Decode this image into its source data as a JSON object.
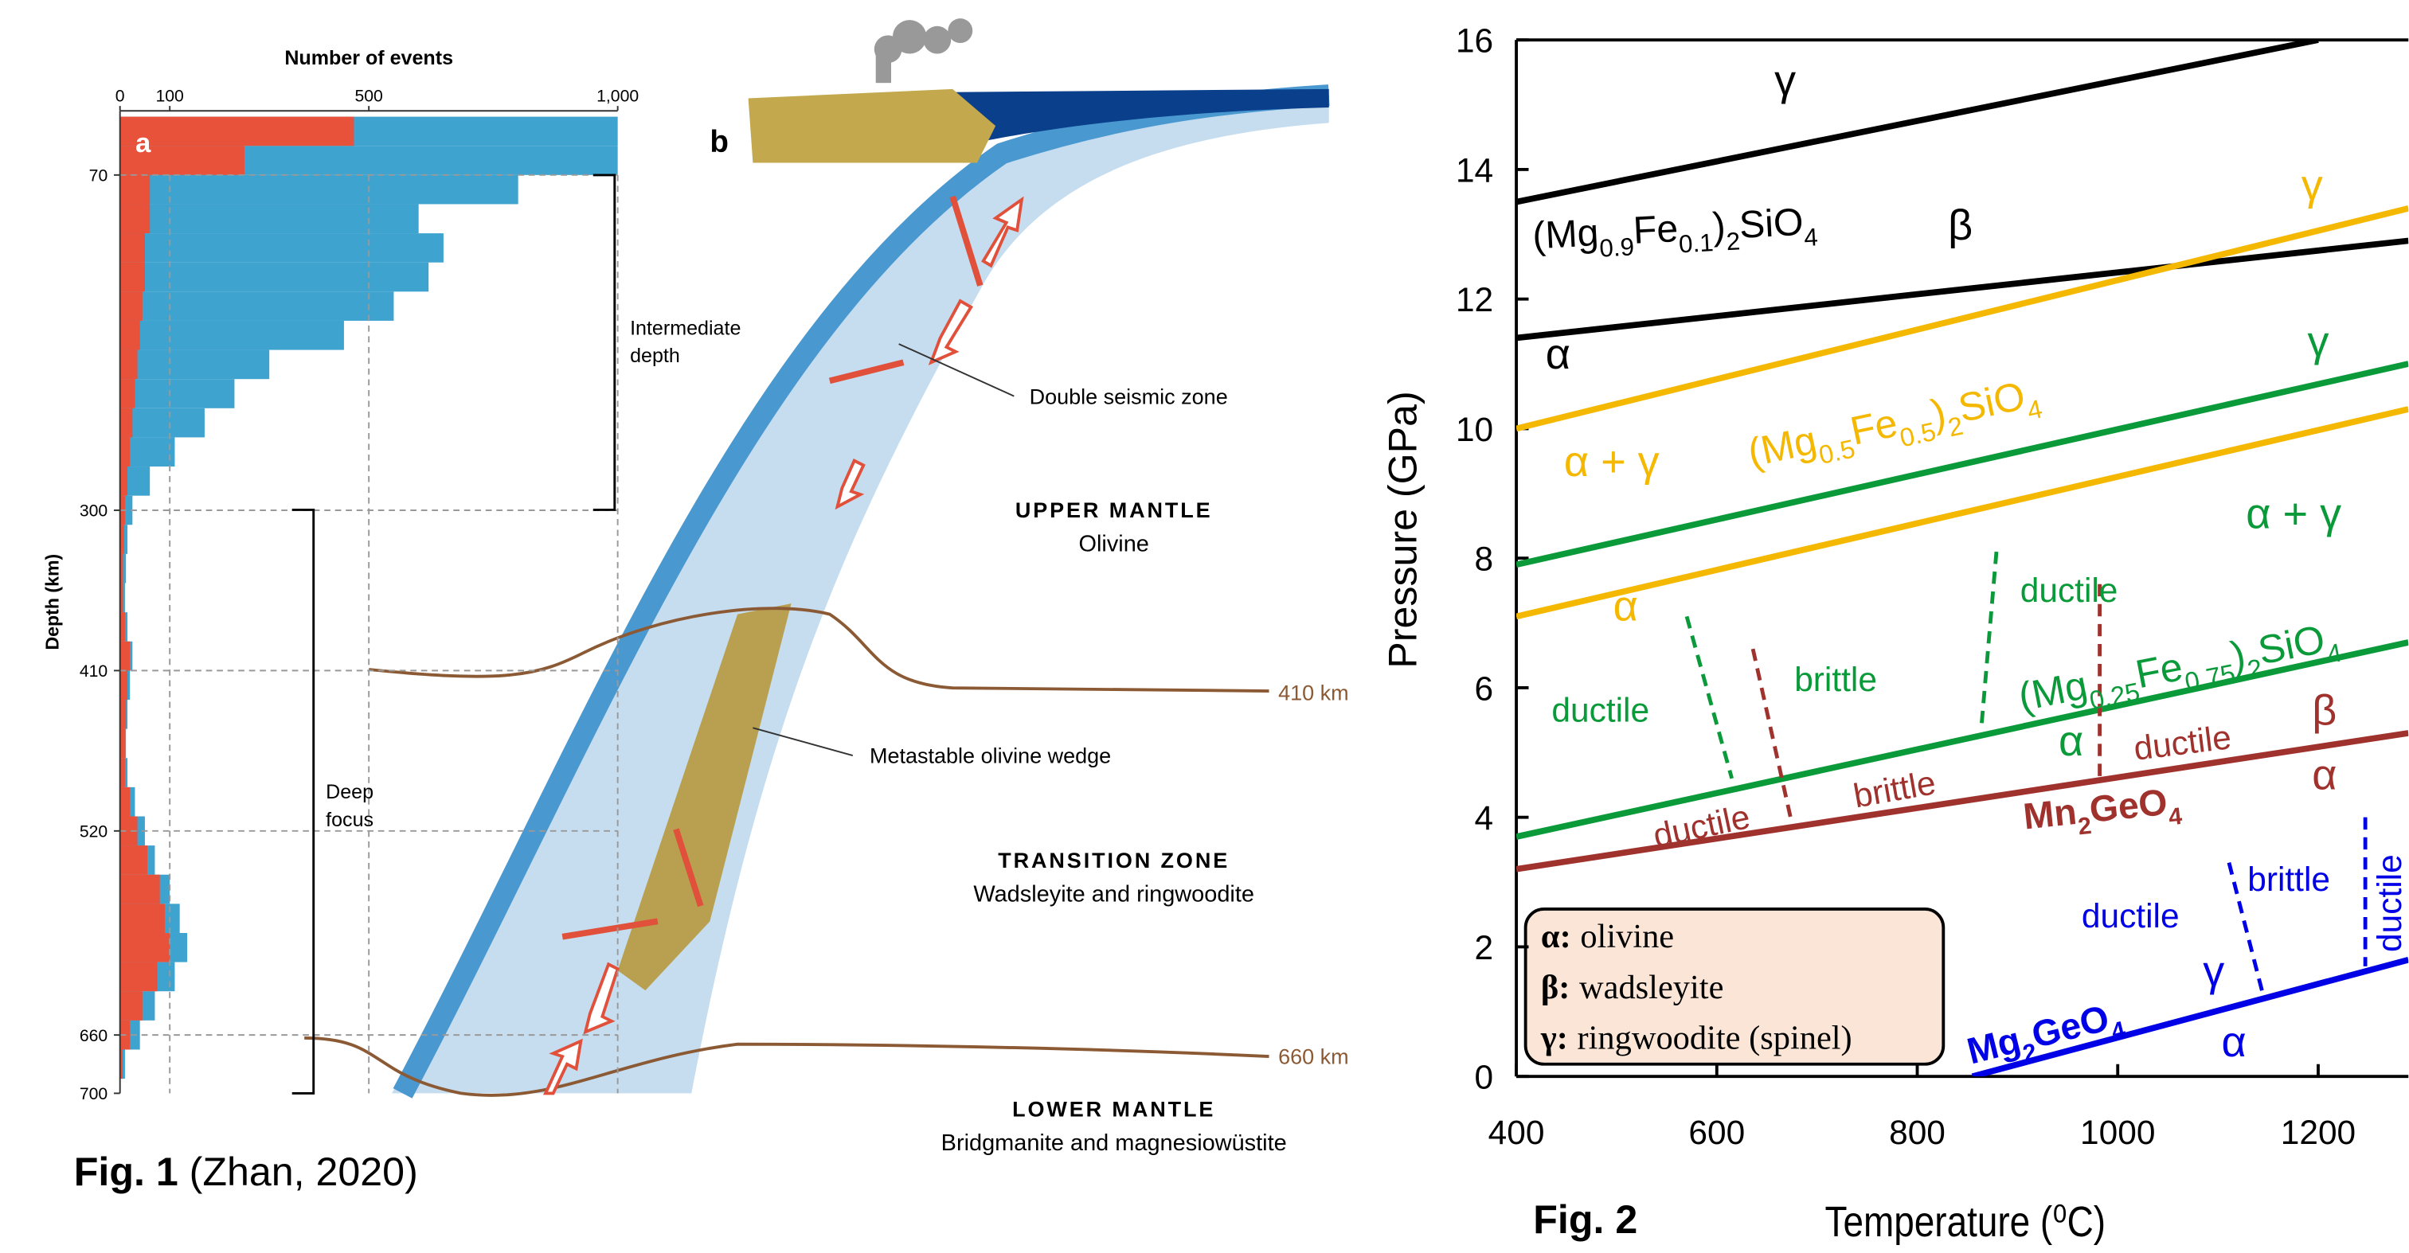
{
  "chart_data": [
    {
      "type": "histogram",
      "orientation": "horizontal",
      "panel": "a",
      "x_label": "Number of events",
      "y_label": "Depth (km)",
      "xlim": [
        0,
        1000
      ],
      "xticks": [
        0,
        100,
        500,
        {
          "value": 1000,
          "label": "1,000"
        }
      ],
      "ylim": [
        26,
        700
      ],
      "yticks": [
        70,
        300,
        410,
        520,
        660,
        700
      ],
      "grid": true,
      "bins": [
        30,
        50,
        70,
        90,
        110,
        130,
        150,
        170,
        190,
        210,
        230,
        250,
        270,
        290,
        310,
        330,
        350,
        370,
        390,
        410,
        430,
        450,
        470,
        490,
        510,
        530,
        550,
        570,
        590,
        610,
        630,
        650,
        670,
        690
      ],
      "series": [
        {
          "color": "#3fa3cf",
          "values": [
            1000,
            1000,
            800,
            600,
            650,
            620,
            550,
            450,
            300,
            230,
            170,
            110,
            60,
            25,
            15,
            12,
            10,
            15,
            25,
            20,
            15,
            12,
            15,
            30,
            50,
            70,
            100,
            120,
            135,
            110,
            70,
            40,
            10
          ]
        },
        {
          "color": "#e8513a",
          "values": [
            470,
            250,
            60,
            60,
            50,
            50,
            45,
            40,
            35,
            30,
            25,
            20,
            15,
            10,
            8,
            6,
            6,
            10,
            20,
            15,
            12,
            10,
            10,
            20,
            35,
            55,
            80,
            90,
            100,
            75,
            45,
            20,
            5
          ]
        }
      ],
      "annotations": [
        [
          "Intermediate",
          "depth"
        ],
        [
          "Deep",
          "focus"
        ]
      ]
    },
    {
      "type": "line",
      "x_label": "Temperature (⁰C)",
      "y_label": "Pressure (GPa)",
      "xlim": [
        400,
        1290
      ],
      "xticks": [
        400,
        600,
        800,
        1000,
        1200
      ],
      "ylim": [
        0,
        16
      ],
      "yticks": [
        0,
        2,
        4,
        6,
        8,
        10,
        12,
        14,
        16
      ],
      "series": [
        {
          "color": "#000000",
          "x": [
            400,
            1200
          ],
          "values": [
            13.5,
            16
          ]
        },
        {
          "color": "#000000",
          "x": [
            400,
            1290
          ],
          "values": [
            11.4,
            12.9
          ]
        },
        {
          "color": "#f5b800",
          "x": [
            400,
            1290
          ],
          "values": [
            10.0,
            13.4
          ]
        },
        {
          "color": "#f5b800",
          "x": [
            400,
            1290
          ],
          "values": [
            7.1,
            10.3
          ]
        },
        {
          "color": "#0a9a3a",
          "x": [
            400,
            1290
          ],
          "values": [
            7.9,
            11.0
          ]
        },
        {
          "color": "#0a9a3a",
          "x": [
            400,
            1290
          ],
          "values": [
            3.7,
            6.7
          ]
        },
        {
          "color": "#a0322e",
          "x": [
            400,
            1290
          ],
          "values": [
            3.2,
            5.3
          ]
        },
        {
          "color": "#0000e6",
          "x": [
            855,
            1290
          ],
          "values": [
            0,
            1.8
          ]
        },
        {
          "color": "#0a9a3a",
          "dashed": true,
          "x": [
            570,
            615
          ],
          "values": [
            7.1,
            4.6
          ]
        },
        {
          "color": "#a0322e",
          "dashed": true,
          "x": [
            636,
            675
          ],
          "values": [
            6.6,
            3.9
          ]
        },
        {
          "color": "#0a9a3a",
          "dashed": true,
          "x": [
            879,
            864
          ],
          "values": [
            8.1,
            5.4
          ]
        },
        {
          "color": "#a0322e",
          "dashed": true,
          "x": [
            982,
            982
          ],
          "values": [
            7.6,
            4.6
          ]
        },
        {
          "color": "#0000e6",
          "dashed": true,
          "x": [
            1111,
            1146
          ],
          "values": [
            3.3,
            1.2
          ]
        },
        {
          "color": "#0000e6",
          "dashed": true,
          "x": [
            1247,
            1247
          ],
          "values": [
            4.0,
            1.7
          ]
        }
      ],
      "annotations": [
        {
          "text": "γ",
          "color": "#000000"
        },
        {
          "parts": [
            "(Mg",
            "0.9",
            "Fe",
            "0.1",
            ")",
            "2",
            "SiO",
            "4"
          ],
          "color": "#000000"
        },
        {
          "text": "β",
          "color": "#000000"
        },
        {
          "text": "α",
          "color": "#000000"
        },
        {
          "text": "γ",
          "color": "#f5b800"
        },
        {
          "text": "α + γ",
          "color": "#f5b800"
        },
        {
          "parts": [
            "(Mg",
            "0.5",
            "Fe",
            "0.5",
            ")",
            "2",
            "SiO",
            "4"
          ],
          "color": "#f5b800"
        },
        {
          "text": "α",
          "color": "#f5b800"
        },
        {
          "text": "γ",
          "color": "#0a9a3a"
        },
        {
          "text": "α + γ",
          "color": "#0a9a3a"
        },
        {
          "text": "ductile",
          "color": "#0a9a3a"
        },
        {
          "text": "brittle",
          "color": "#0a9a3a"
        },
        {
          "text": "ductile",
          "color": "#0a9a3a"
        },
        {
          "parts": [
            "(Mg",
            "0.25",
            "Fe",
            "0.75",
            ")",
            "2",
            "SiO",
            "4"
          ],
          "color": "#0a9a3a"
        },
        {
          "text": "α",
          "color": "#0a9a3a"
        },
        {
          "text": "ductile",
          "color": "#a0322e"
        },
        {
          "text": "brittle",
          "color": "#a0322e"
        },
        {
          "text": "ductile",
          "color": "#a0322e"
        },
        {
          "text": "β",
          "color": "#a0322e"
        },
        {
          "text": "α",
          "color": "#a0322e"
        },
        {
          "parts": [
            "Mn",
            "2",
            "GeO",
            "4"
          ],
          "color": "#a0322e"
        },
        {
          "text": "ductile",
          "color": "#0000e6"
        },
        {
          "text": "brittle",
          "color": "#0000e6"
        },
        {
          "text": "ductile",
          "color": "#0000e6"
        },
        {
          "text": "γ",
          "color": "#0000e6"
        },
        {
          "parts": [
            "Mg",
            "2",
            "GeO",
            "4"
          ],
          "color": "#0000e6"
        },
        {
          "text": "α",
          "color": "#0000e6"
        }
      ],
      "legend": [
        {
          "symbol": "α:",
          "label": "olivine"
        },
        {
          "symbol": "β:",
          "label": "wadsleyite"
        },
        {
          "symbol": "γ:",
          "label": "ringwoodite (spinel)"
        }
      ]
    }
  ],
  "diagram": {
    "panel": "b",
    "double_zone": "Double seismic zone",
    "upper_title": "UPPER MANTLE",
    "upper_sub": "Olivine",
    "d410": "410 km",
    "wedge": "Metastable olivine wedge",
    "tz_title": "TRANSITION ZONE",
    "tz_sub": "Wadsleyite and ringwoodite",
    "d660": "660 km",
    "lower_title": "LOWER MANTLE",
    "lower_sub": "Bridgmanite and magnesiowüstite"
  },
  "captions": {
    "fig1_label": "Fig. 1",
    "fig1_source": "(Zhan, 2020)",
    "fig2_label": "Fig. 2"
  }
}
